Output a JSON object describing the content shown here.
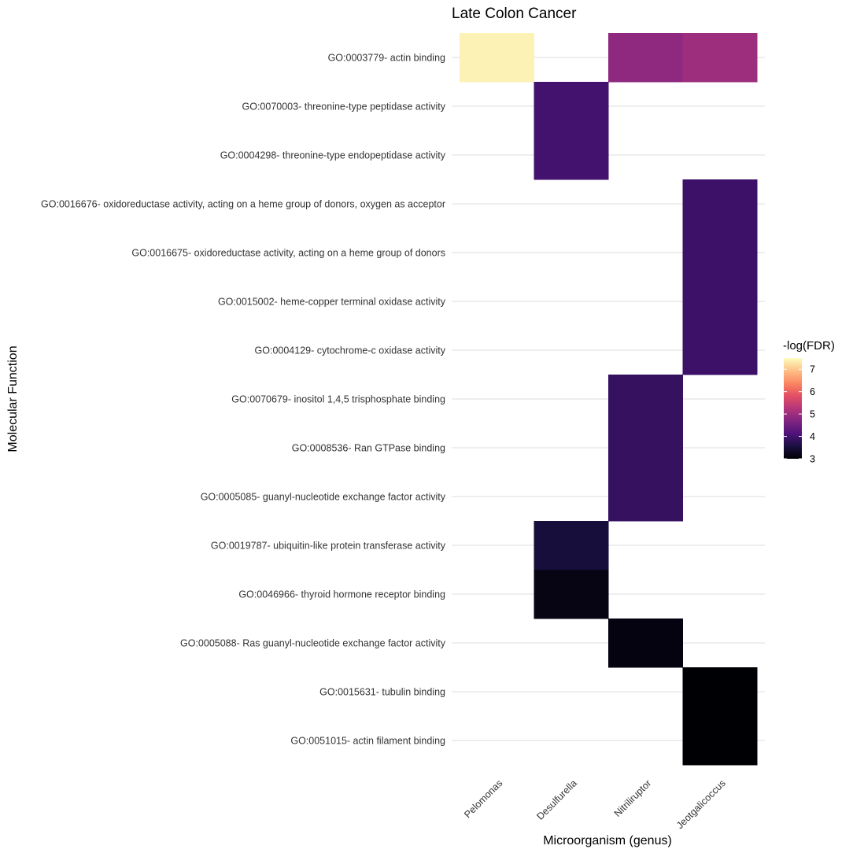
{
  "chart_data": {
    "type": "heatmap",
    "title": "Late Colon Cancer",
    "xlabel": "Microorganism (genus)",
    "ylabel": "Molecular Function",
    "x_categories": [
      "Pelomonas",
      "Desulfurella",
      "Nitriliruptor",
      "Jeotgalicoccus"
    ],
    "y_categories": [
      "GO:0003779- actin binding",
      "GO:0070003- threonine-type peptidase activity",
      "GO:0004298- threonine-type endopeptidase activity",
      "GO:0016676- oxidoreductase activity, acting on a heme group of donors, oxygen as acceptor",
      "GO:0016675- oxidoreductase activity, acting on a heme group of donors",
      "GO:0015002- heme-copper terminal oxidase activity",
      "GO:0004129- cytochrome-c oxidase activity",
      "GO:0070679- inositol 1,4,5 trisphosphate binding",
      "GO:0008536- Ran GTPase binding",
      "GO:0005085- guanyl-nucleotide exchange factor activity",
      "GO:0019787- ubiquitin-like protein transferase activity",
      "GO:0046966- thyroid hormone receptor binding",
      "GO:0005088- Ras guanyl-nucleotide exchange factor activity",
      "GO:0015631- tubulin binding",
      "GO:0051015- actin filament binding"
    ],
    "cells": [
      {
        "x": "Pelomonas",
        "y": "GO:0003779- actin binding",
        "value": 7.4
      },
      {
        "x": "Nitriliruptor",
        "y": "GO:0003779- actin binding",
        "value": 4.85
      },
      {
        "x": "Jeotgalicoccus",
        "y": "GO:0003779- actin binding",
        "value": 5.0
      },
      {
        "x": "Desulfurella",
        "y": "GO:0070003- threonine-type peptidase activity",
        "value": 4.0
      },
      {
        "x": "Desulfurella",
        "y": "GO:0004298- threonine-type endopeptidase activity",
        "value": 4.0
      },
      {
        "x": "Jeotgalicoccus",
        "y": "GO:0016676- oxidoreductase activity, acting on a heme group of donors, oxygen as acceptor",
        "value": 3.95
      },
      {
        "x": "Jeotgalicoccus",
        "y": "GO:0016675- oxidoreductase activity, acting on a heme group of donors",
        "value": 3.95
      },
      {
        "x": "Jeotgalicoccus",
        "y": "GO:0015002- heme-copper terminal oxidase activity",
        "value": 3.95
      },
      {
        "x": "Jeotgalicoccus",
        "y": "GO:0004129- cytochrome-c oxidase activity",
        "value": 3.95
      },
      {
        "x": "Nitriliruptor",
        "y": "GO:0070679- inositol 1,4,5 trisphosphate binding",
        "value": 3.85
      },
      {
        "x": "Nitriliruptor",
        "y": "GO:0008536- Ran GTPase binding",
        "value": 3.85
      },
      {
        "x": "Nitriliruptor",
        "y": "GO:0005085- guanyl-nucleotide exchange factor activity",
        "value": 3.85
      },
      {
        "x": "Desulfurella",
        "y": "GO:0019787- ubiquitin-like protein transferase activity",
        "value": 3.5
      },
      {
        "x": "Desulfurella",
        "y": "GO:0046966- thyroid hormone receptor binding",
        "value": 3.15
      },
      {
        "x": "Nitriliruptor",
        "y": "GO:0005088- Ras guanyl-nucleotide exchange factor activity",
        "value": 3.1
      },
      {
        "x": "Jeotgalicoccus",
        "y": "GO:0015631- tubulin binding",
        "value": 3.0
      },
      {
        "x": "Jeotgalicoccus",
        "y": "GO:0051015- actin filament binding",
        "value": 3.0
      }
    ],
    "colorscale": "magma",
    "color_range": [
      3,
      7.5
    ],
    "legend": {
      "title": "-log(FDR)",
      "ticks": [
        3,
        4,
        5,
        6,
        7
      ],
      "position": "right"
    },
    "grid": true
  }
}
